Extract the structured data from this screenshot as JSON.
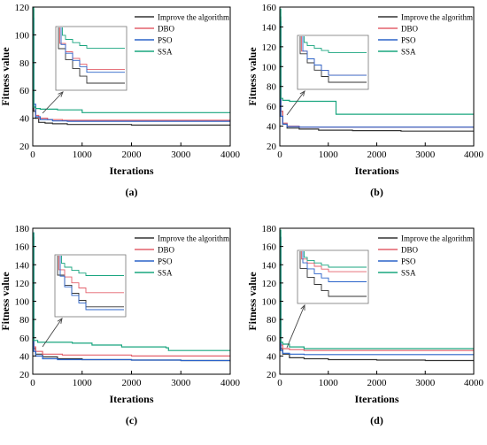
{
  "figure": {
    "panels": [
      "(a)",
      "(b)",
      "(c)",
      "(d)"
    ]
  },
  "colors": {
    "improved": "#333333",
    "dbo": "#e4606b",
    "pso": "#2b63c9",
    "ssa": "#19a57f",
    "zoom_box": "#777777"
  },
  "chart_data": [
    {
      "type": "line",
      "panel_label": "(a)",
      "xlabel": "Iterations",
      "ylabel": "Fitness value",
      "xlim": [
        0,
        4000
      ],
      "ylim": [
        20,
        120
      ],
      "xticks": [
        0,
        1000,
        2000,
        3000,
        4000
      ],
      "yticks": [
        20,
        40,
        60,
        80,
        100,
        120
      ],
      "legend_position": "top-right",
      "series": [
        {
          "name": "Improve the algorithm",
          "color_key": "improved",
          "x": [
            0,
            20,
            60,
            120,
            250,
            400,
            700,
            1000,
            2000,
            3000,
            4000
          ],
          "y": [
            118,
            45,
            40,
            37,
            36.5,
            36,
            35.5,
            35.5,
            35,
            35,
            35
          ]
        },
        {
          "name": "DBO",
          "color_key": "dbo",
          "x": [
            0,
            20,
            60,
            120,
            300,
            600,
            1000,
            2000,
            4000
          ],
          "y": [
            110,
            48,
            42,
            40,
            39,
            38.5,
            38.5,
            38.5,
            38.5
          ]
        },
        {
          "name": "PSO",
          "color_key": "pso",
          "x": [
            0,
            20,
            60,
            150,
            400,
            700,
            1000,
            2000,
            4000
          ],
          "y": [
            112,
            50,
            41,
            39,
            38,
            37.8,
            37.8,
            37.8,
            37.8
          ]
        },
        {
          "name": "SSA",
          "color_key": "ssa",
          "x": [
            0,
            20,
            60,
            150,
            500,
            1000,
            2000,
            3000,
            4000
          ],
          "y": [
            120,
            48,
            47,
            46.5,
            46,
            44,
            44,
            44,
            44
          ]
        }
      ]
    },
    {
      "type": "line",
      "panel_label": "(b)",
      "xlabel": "Iterations",
      "ylabel": "Fitness value",
      "xlim": [
        0,
        4000
      ],
      "ylim": [
        20,
        160
      ],
      "xticks": [
        0,
        1000,
        2000,
        3000,
        4000
      ],
      "yticks": [
        20,
        40,
        60,
        80,
        100,
        120,
        140,
        160
      ],
      "legend_position": "top-right",
      "series": [
        {
          "name": "Improve the algorithm",
          "color_key": "improved",
          "x": [
            0,
            20,
            60,
            150,
            400,
            800,
            1500,
            2500,
            4000
          ],
          "y": [
            150,
            55,
            42,
            38,
            37,
            36,
            35.5,
            35,
            35
          ]
        },
        {
          "name": "DBO",
          "color_key": "dbo",
          "x": [
            0,
            20,
            60,
            150,
            400,
            1000,
            2000,
            4000
          ],
          "y": [
            140,
            55,
            43,
            40,
            39,
            39,
            39,
            39
          ]
        },
        {
          "name": "PSO",
          "color_key": "pso",
          "x": [
            0,
            20,
            60,
            150,
            400,
            1000,
            2000,
            4000
          ],
          "y": [
            145,
            50,
            42,
            39.5,
            39,
            39,
            39,
            39
          ]
        },
        {
          "name": "SSA",
          "color_key": "ssa",
          "x": [
            0,
            20,
            60,
            200,
            1150,
            1160,
            2000,
            3000,
            4000
          ],
          "y": [
            158,
            68,
            66,
            65,
            65,
            52,
            52,
            52,
            52
          ]
        }
      ]
    },
    {
      "type": "line",
      "panel_label": "(c)",
      "xlabel": "Iterations",
      "ylabel": "Fitness value",
      "xlim": [
        0,
        4000
      ],
      "ylim": [
        20,
        180
      ],
      "xticks": [
        0,
        1000,
        2000,
        3000,
        4000
      ],
      "yticks": [
        20,
        40,
        60,
        80,
        100,
        120,
        140,
        160,
        180
      ],
      "legend_position": "top-right",
      "series": [
        {
          "name": "Improve the algorithm",
          "color_key": "improved",
          "x": [
            0,
            20,
            60,
            200,
            500,
            1000,
            2000,
            3000,
            4000
          ],
          "y": [
            170,
            48,
            42,
            39,
            37,
            36,
            35.5,
            35,
            35
          ]
        },
        {
          "name": "DBO",
          "color_key": "dbo",
          "x": [
            0,
            20,
            60,
            200,
            600,
            1000,
            2000,
            3000,
            4000
          ],
          "y": [
            160,
            50,
            45,
            42,
            41,
            41,
            40,
            40,
            40
          ]
        },
        {
          "name": "PSO",
          "color_key": "pso",
          "x": [
            0,
            20,
            60,
            200,
            500,
            1000,
            2000,
            3000,
            4000
          ],
          "y": [
            175,
            45,
            40,
            37,
            36,
            36,
            35.5,
            35,
            34
          ]
        },
        {
          "name": "SSA",
          "color_key": "ssa",
          "x": [
            0,
            20,
            100,
            800,
            1200,
            1800,
            2700,
            2750,
            4000
          ],
          "y": [
            175,
            57,
            55,
            54,
            52,
            50,
            49,
            46,
            46
          ]
        }
      ]
    },
    {
      "type": "line",
      "panel_label": "(d)",
      "xlabel": "Iterations",
      "ylabel": "Fitness value",
      "xlim": [
        0,
        4000
      ],
      "ylim": [
        20,
        180
      ],
      "xticks": [
        0,
        1000,
        2000,
        3000,
        4000
      ],
      "yticks": [
        20,
        40,
        60,
        80,
        100,
        120,
        140,
        160,
        180
      ],
      "legend_position": "top-right",
      "series": [
        {
          "name": "Improve the algorithm",
          "color_key": "improved",
          "x": [
            0,
            20,
            60,
            200,
            500,
            1000,
            2000,
            3000,
            4000
          ],
          "y": [
            170,
            48,
            42,
            38,
            37,
            36,
            35.5,
            35,
            35
          ]
        },
        {
          "name": "DBO",
          "color_key": "dbo",
          "x": [
            0,
            20,
            60,
            200,
            500,
            1000,
            2000,
            4000
          ],
          "y": [
            165,
            52,
            48,
            47,
            46,
            46,
            46,
            46
          ]
        },
        {
          "name": "PSO",
          "color_key": "pso",
          "x": [
            0,
            20,
            60,
            200,
            500,
            1000,
            2000,
            4000
          ],
          "y": [
            170,
            46,
            43,
            42,
            41.5,
            41.5,
            41.5,
            41.5
          ]
        },
        {
          "name": "SSA",
          "color_key": "ssa",
          "x": [
            0,
            20,
            60,
            200,
            500,
            1000,
            2000,
            4000
          ],
          "y": [
            178,
            55,
            53,
            50,
            48,
            48,
            48,
            48
          ]
        }
      ]
    }
  ]
}
